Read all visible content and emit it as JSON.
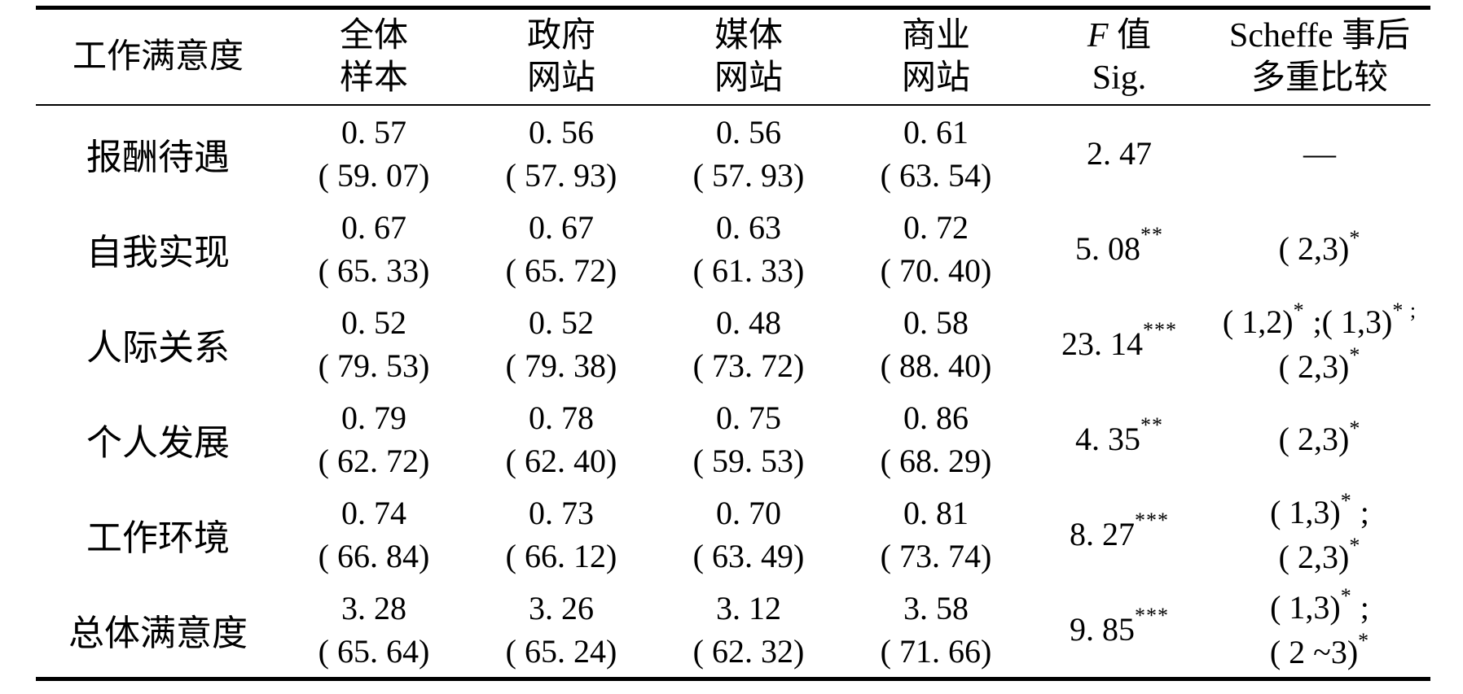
{
  "table": {
    "title_semantic": "job-satisfaction-anova-table",
    "background": "#ffffff",
    "rule_color": "#000000",
    "columns": [
      {
        "id": "job-satisfaction",
        "lines": [
          [
            {
              "t": "工作满意度"
            }
          ]
        ]
      },
      {
        "id": "total-sample",
        "lines": [
          [
            {
              "t": "全体"
            }
          ],
          [
            {
              "t": "样本"
            }
          ]
        ]
      },
      {
        "id": "gov-site",
        "lines": [
          [
            {
              "t": "政府"
            }
          ],
          [
            {
              "t": "网站"
            }
          ]
        ]
      },
      {
        "id": "media-site",
        "lines": [
          [
            {
              "t": "媒体"
            }
          ],
          [
            {
              "t": "网站"
            }
          ]
        ]
      },
      {
        "id": "biz-site",
        "lines": [
          [
            {
              "t": "商业"
            }
          ],
          [
            {
              "t": "网站"
            }
          ]
        ]
      },
      {
        "id": "f-sig",
        "lines": [
          [
            {
              "i": "F"
            },
            {
              "t": " 值"
            }
          ],
          [
            {
              "t": "Sig."
            }
          ]
        ]
      },
      {
        "id": "scheffe",
        "lines": [
          [
            {
              "t": "Scheffe 事后"
            }
          ],
          [
            {
              "t": "多重比较"
            }
          ]
        ]
      }
    ],
    "rows": [
      {
        "label": "报酬待遇",
        "cells": [
          {
            "mean": "0. 57",
            "score": "( 59. 07)"
          },
          {
            "mean": "0. 56",
            "score": "( 57. 93)"
          },
          {
            "mean": "0. 56",
            "score": "( 57. 93)"
          },
          {
            "mean": "0. 61",
            "score": "( 63. 54)"
          }
        ],
        "f": [
          {
            "t": "2. 47"
          }
        ],
        "scheffe": [
          [
            {
              "t": "—"
            }
          ]
        ]
      },
      {
        "label": "自我实现",
        "cells": [
          {
            "mean": "0. 67",
            "score": "( 65. 33)"
          },
          {
            "mean": "0. 67",
            "score": "( 65. 72)"
          },
          {
            "mean": "0. 63",
            "score": "( 61. 33)"
          },
          {
            "mean": "0. 72",
            "score": "( 70. 40)"
          }
        ],
        "f": [
          {
            "t": "5. 08"
          },
          {
            "sup": "**"
          }
        ],
        "scheffe": [
          [
            {
              "t": "( 2,3)"
            },
            {
              "sup": "*"
            }
          ]
        ]
      },
      {
        "label": "人际关系",
        "cells": [
          {
            "mean": "0. 52",
            "score": "( 79. 53)"
          },
          {
            "mean": "0. 52",
            "score": "( 79. 38)"
          },
          {
            "mean": "0. 48",
            "score": "( 73. 72)"
          },
          {
            "mean": "0. 58",
            "score": "( 88. 40)"
          }
        ],
        "f": [
          {
            "t": "23. 14"
          },
          {
            "sup": "***"
          }
        ],
        "scheffe": [
          [
            {
              "t": "( 1,2)"
            },
            {
              "sup": "*"
            },
            {
              "t": " ;( 1,3)"
            },
            {
              "sup": "* ;"
            }
          ],
          [
            {
              "t": "( 2,3)"
            },
            {
              "sup": "*"
            }
          ]
        ]
      },
      {
        "label": "个人发展",
        "cells": [
          {
            "mean": "0. 79",
            "score": "( 62. 72)"
          },
          {
            "mean": "0. 78",
            "score": "( 62. 40)"
          },
          {
            "mean": "0. 75",
            "score": "( 59. 53)"
          },
          {
            "mean": "0. 86",
            "score": "( 68. 29)"
          }
        ],
        "f": [
          {
            "t": "4. 35"
          },
          {
            "sup": "**"
          }
        ],
        "scheffe": [
          [
            {
              "t": "( 2,3)"
            },
            {
              "sup": "*"
            }
          ]
        ]
      },
      {
        "label": "工作环境",
        "cells": [
          {
            "mean": "0. 74",
            "score": "( 66. 84)"
          },
          {
            "mean": "0. 73",
            "score": "( 66. 12)"
          },
          {
            "mean": "0. 70",
            "score": "( 63. 49)"
          },
          {
            "mean": "0. 81",
            "score": "( 73. 74)"
          }
        ],
        "f": [
          {
            "t": "8. 27"
          },
          {
            "sup": "***"
          }
        ],
        "scheffe": [
          [
            {
              "t": "( 1,3)"
            },
            {
              "sup": "*"
            },
            {
              "t": " ;"
            }
          ],
          [
            {
              "t": "( 2,3)"
            },
            {
              "sup": "*"
            }
          ]
        ]
      },
      {
        "label": "总体满意度",
        "cells": [
          {
            "mean": "3. 28",
            "score": "( 65. 64)"
          },
          {
            "mean": "3. 26",
            "score": "( 65. 24)"
          },
          {
            "mean": "3. 12",
            "score": "( 62. 32)"
          },
          {
            "mean": "3. 58",
            "score": "( 71. 66)"
          }
        ],
        "f": [
          {
            "t": "9. 85"
          },
          {
            "sup": "***"
          }
        ],
        "scheffe": [
          [
            {
              "t": "( 1,3)"
            },
            {
              "sup": "*"
            },
            {
              "t": " ;"
            }
          ],
          [
            {
              "t": "( 2 ~3)"
            },
            {
              "sup": "*"
            }
          ]
        ]
      }
    ]
  }
}
